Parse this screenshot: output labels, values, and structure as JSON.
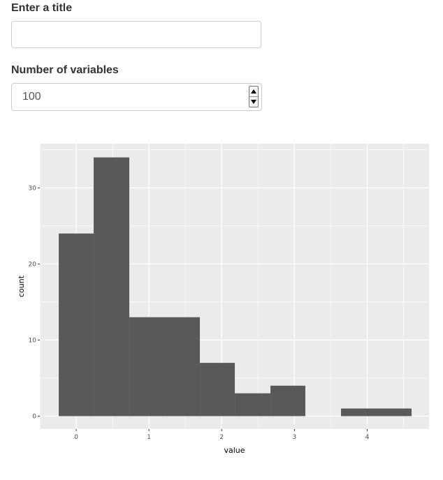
{
  "form": {
    "title_label": "Enter a title",
    "title_value": "",
    "variables_label": "Number of variables",
    "variables_value": "100"
  },
  "chart_data": {
    "type": "bar",
    "xlabel": "value",
    "ylabel": "count",
    "x_ticks": [
      0,
      1,
      2,
      3,
      4
    ],
    "y_ticks": [
      0,
      10,
      20,
      30
    ],
    "xlim": [
      -0.5,
      4.85
    ],
    "ylim": [
      -1.7,
      35.8
    ],
    "bins": [
      {
        "start": -0.24,
        "end": 0.24,
        "count": 24
      },
      {
        "start": 0.24,
        "end": 0.73,
        "count": 34
      },
      {
        "start": 0.73,
        "end": 1.21,
        "count": 13
      },
      {
        "start": 1.21,
        "end": 1.7,
        "count": 13
      },
      {
        "start": 1.7,
        "end": 2.18,
        "count": 7
      },
      {
        "start": 2.18,
        "end": 2.67,
        "count": 3
      },
      {
        "start": 2.67,
        "end": 3.15,
        "count": 4
      },
      {
        "start": 3.15,
        "end": 3.64,
        "count": 0
      },
      {
        "start": 3.64,
        "end": 4.12,
        "count": 1
      },
      {
        "start": 4.12,
        "end": 4.61,
        "count": 1
      }
    ],
    "panel_background": "#ebebeb",
    "bar_color": "#595959",
    "grid_color": "#ffffff",
    "grid": true
  }
}
